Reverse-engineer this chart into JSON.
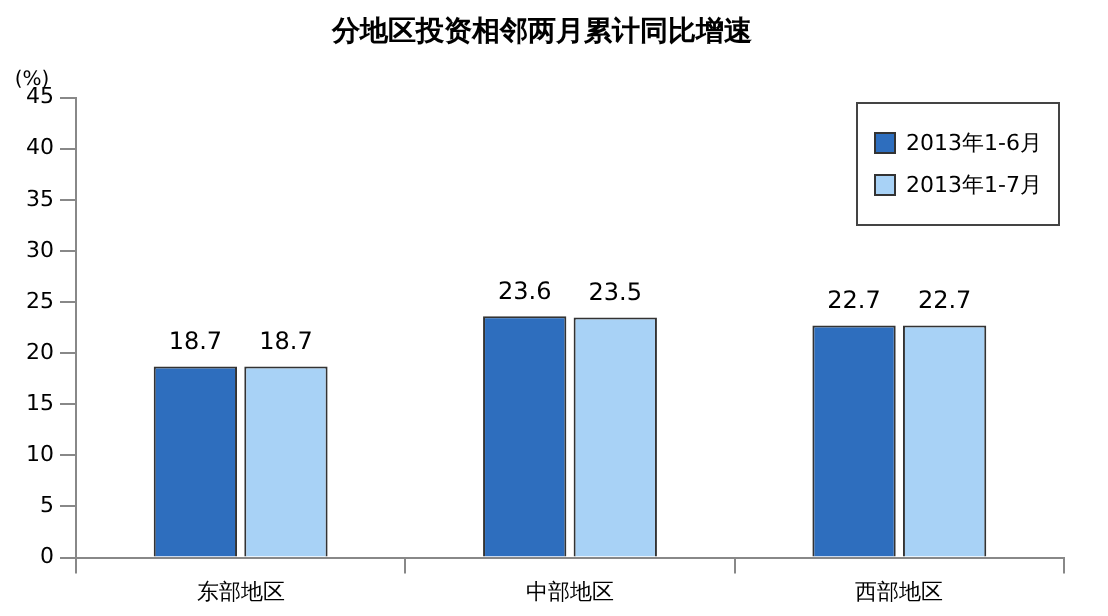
{
  "chart_data": {
    "type": "bar",
    "title": "分地区投资相邻两月累计同比增速",
    "ylabel": "(%)",
    "categories": [
      "东部地区",
      "中部地区",
      "西部地区"
    ],
    "series": [
      {
        "name": "2013年1-6月",
        "color": "#2e6ebe",
        "values": [
          18.7,
          23.6,
          22.7
        ]
      },
      {
        "name": "2013年1-7月",
        "color": "#a8d2f6",
        "values": [
          18.7,
          23.5,
          22.7
        ]
      }
    ],
    "ylim": [
      0,
      45
    ],
    "yticks": [
      0,
      5,
      10,
      15,
      20,
      25,
      30,
      35,
      40,
      45
    ],
    "grid": false,
    "legend": "top right",
    "data_labels": true
  }
}
